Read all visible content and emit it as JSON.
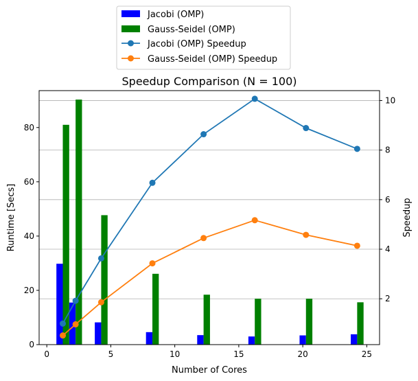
{
  "chart_data": {
    "type": "bar+line",
    "title": "Speedup Comparison (N = 100)",
    "xlabel": "Number of Cores",
    "ylabel_left": "Runtime [Secs]",
    "ylabel_right": "Speedup",
    "xlim": [
      -0.6,
      26.0
    ],
    "ylim_left": [
      0,
      93.6
    ],
    "ylim_right": [
      0.15,
      10.4
    ],
    "x_ticks": [
      0,
      5,
      10,
      15,
      20,
      25
    ],
    "y_left_ticks": [
      0,
      20,
      40,
      60,
      80
    ],
    "y_right_ticks": [
      2,
      4,
      6,
      8,
      10
    ],
    "grid": "right-axis horizontal",
    "legend_position": "above-top-center",
    "cores": [
      1,
      2,
      4,
      8,
      12,
      16,
      20,
      24
    ],
    "bar_width": 0.5,
    "bars": [
      {
        "name": "Jacobi (OMP)",
        "color": "#0000ff",
        "offset": 0,
        "values": [
          29.8,
          15.5,
          8.2,
          4.6,
          3.5,
          3.0,
          3.4,
          3.8
        ]
      },
      {
        "name": "Gauss-Seidel (OMP)",
        "color": "#008000",
        "offset": 0.5,
        "values": [
          81.0,
          90.3,
          47.7,
          26.1,
          18.4,
          16.9,
          16.9,
          15.6
        ]
      }
    ],
    "lines": [
      {
        "name": "Jacobi (OMP) Speedup",
        "color": "#1f77b4",
        "offset": 0.25,
        "values": [
          1.0,
          1.92,
          3.63,
          6.68,
          8.64,
          10.07,
          8.89,
          8.05
        ]
      },
      {
        "name": "Gauss-Seidel (OMP) Speedup",
        "color": "#ff7f0e",
        "offset": 0.25,
        "values": [
          0.52,
          0.97,
          1.86,
          3.43,
          4.45,
          5.17,
          4.58,
          4.14
        ]
      }
    ],
    "legend": [
      {
        "label": "Jacobi (OMP)",
        "kind": "bar",
        "color": "#0000ff"
      },
      {
        "label": "Gauss-Seidel (OMP)",
        "kind": "bar",
        "color": "#008000"
      },
      {
        "label": "Jacobi (OMP) Speedup",
        "kind": "line",
        "color": "#1f77b4"
      },
      {
        "label": "Gauss-Seidel (OMP) Speedup",
        "kind": "line",
        "color": "#ff7f0e"
      }
    ]
  }
}
